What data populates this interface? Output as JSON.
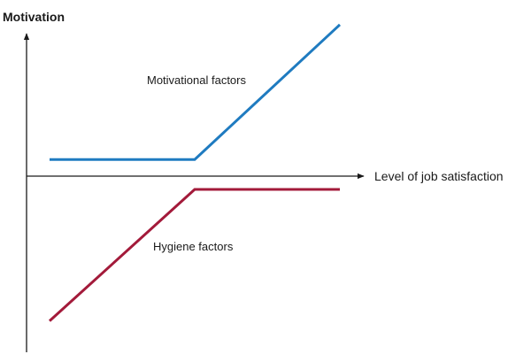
{
  "chart_data": {
    "type": "line",
    "xlabel": "Level of job satisfaction",
    "ylabel": "Motivation",
    "xlim": [
      0,
      10
    ],
    "ylim": [
      -10,
      10
    ],
    "grid": false,
    "series": [
      {
        "name": "Motivational factors",
        "color": "#1f7bc0",
        "points": [
          [
            0,
            1
          ],
          [
            4.5,
            1
          ],
          [
            9,
            9.1
          ]
        ]
      },
      {
        "name": "Hygiene factors",
        "color": "#a31a3a",
        "points": [
          [
            0,
            -8.7
          ],
          [
            4.5,
            -0.8
          ],
          [
            9,
            -0.8
          ]
        ]
      }
    ],
    "annotations": [
      {
        "text": "Motivational factors",
        "series": 0
      },
      {
        "text": "Hygiene factors",
        "series": 1
      }
    ]
  }
}
